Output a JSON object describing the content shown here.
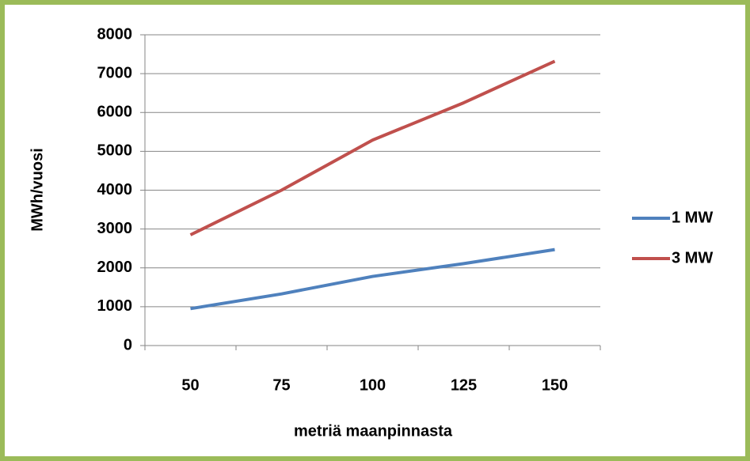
{
  "chart_data": {
    "type": "line",
    "title": "",
    "xlabel": "metriä maanpinnasta",
    "ylabel": "MWh/vuosi",
    "categories": [
      "50",
      "75",
      "100",
      "125",
      "150"
    ],
    "ylim": [
      0,
      8000
    ],
    "yticks": [
      0,
      1000,
      2000,
      3000,
      4000,
      5000,
      6000,
      7000,
      8000
    ],
    "grid": true,
    "legend_position": "right",
    "series": [
      {
        "name": "1 MW",
        "color": "#4f81bd",
        "values": [
          950,
          1330,
          1780,
          2110,
          2470
        ]
      },
      {
        "name": "3 MW",
        "color": "#c0504d",
        "values": [
          2850,
          4000,
          5290,
          6250,
          7320
        ]
      }
    ]
  },
  "frame_color": "#9bbb59"
}
